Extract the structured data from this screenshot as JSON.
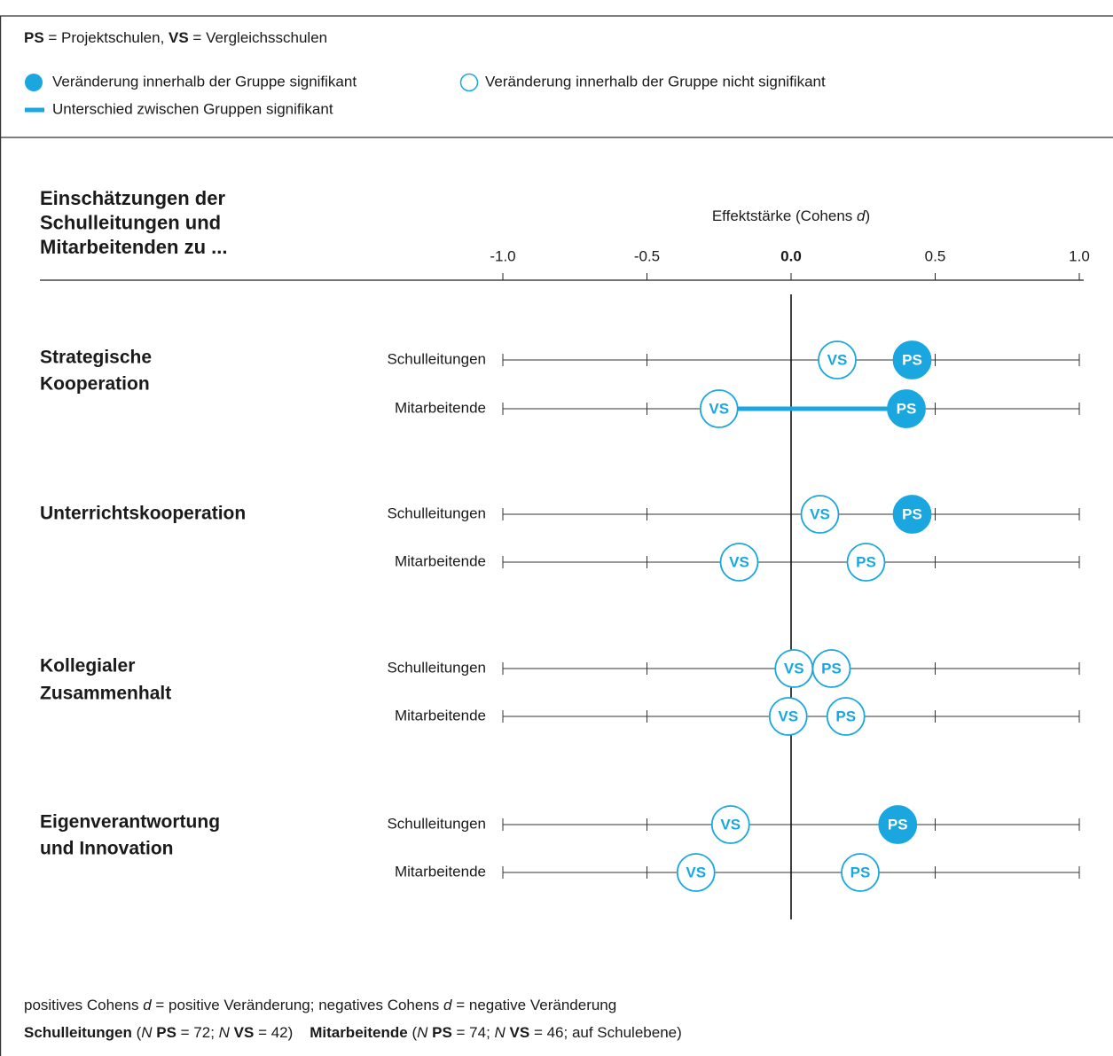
{
  "chart_data": {
    "type": "dot",
    "legend": {
      "abbreviations": [
        {
          "text": "PS",
          "bold": true
        },
        {
          "text": " = Projektschulen, "
        },
        {
          "text": "VS",
          "bold": true
        },
        {
          "text": " = Vergleichsschulen"
        }
      ],
      "significant": "Veränderung innerhalb der Gruppe signifikant",
      "not_significant": "Veränderung innerhalb der Gruppe nicht signifikant",
      "difference": "Unterschied zwischen Gruppen signifikant"
    },
    "title": [
      "Einschätzungen der",
      "Schulleitungen und",
      "Mitarbeitenden zu ..."
    ],
    "x_label": [
      {
        "text": "Effektstärke (Cohens "
      },
      {
        "text": "d",
        "italic": true
      },
      {
        "text": ")"
      }
    ],
    "xlim": [
      -1.0,
      1.0
    ],
    "xticks": [
      {
        "value": -1.0,
        "label": "-1.0"
      },
      {
        "value": -0.5,
        "label": "-0.5"
      },
      {
        "value": 0.0,
        "label": "0.0"
      },
      {
        "value": 0.5,
        "label": "0.5"
      },
      {
        "value": 1.0,
        "label": "1.0"
      }
    ],
    "groups": [
      {
        "name": [
          "Strategische",
          "Kooperation"
        ],
        "categories": [
          "Schulleitungen",
          "Mitarbeitende"
        ]
      },
      {
        "name": [
          "Unterrichtskooperation"
        ],
        "categories": [
          "Schulleitungen",
          "Mitarbeitende"
        ]
      },
      {
        "name": [
          "Kollegialer",
          "Zusammenhalt"
        ],
        "categories": [
          "Schulleitungen",
          "Mitarbeitende"
        ]
      },
      {
        "name": [
          "Eigenverantwortung",
          "und Innovation"
        ],
        "categories": [
          "Schulleitungen",
          "Mitarbeitende"
        ]
      }
    ],
    "series": [
      {
        "name": "VS",
        "color": "#1aa7e0",
        "values": [
          0.16,
          -0.25,
          0.1,
          -0.18,
          0.01,
          -0.01,
          -0.21,
          -0.33
        ],
        "significant": [
          false,
          false,
          false,
          false,
          false,
          false,
          false,
          false
        ]
      },
      {
        "name": "PS",
        "color": "#1aa7e0",
        "values": [
          0.42,
          0.4,
          0.42,
          0.26,
          0.14,
          0.19,
          0.37,
          0.24
        ],
        "significant": [
          true,
          true,
          true,
          false,
          false,
          false,
          true,
          false
        ]
      }
    ],
    "group_difference_significant": [
      false,
      true,
      false,
      false,
      false,
      false,
      false,
      false
    ],
    "footer": [
      [
        {
          "text": "positives Cohens "
        },
        {
          "text": "d",
          "italic": true
        },
        {
          "text": " = positive Veränderung; negatives Cohens "
        },
        {
          "text": "d",
          "italic": true
        },
        {
          "text": " = negative Veränderung"
        }
      ],
      [
        {
          "text": "Schulleitungen",
          "bold": true
        },
        {
          "text": " ("
        },
        {
          "text": "N",
          "italic": true
        },
        {
          "text": " PS",
          "bold": true
        },
        {
          "text": " = 72; "
        },
        {
          "text": "N",
          "italic": true
        },
        {
          "text": " VS",
          "bold": true
        },
        {
          "text": " = 42)    "
        },
        {
          "text": "Mitarbeitende",
          "bold": true
        },
        {
          "text": " ("
        },
        {
          "text": "N",
          "italic": true
        },
        {
          "text": " PS",
          "bold": true
        },
        {
          "text": " = 74; "
        },
        {
          "text": "N",
          "italic": true
        },
        {
          "text": " VS",
          "bold": true
        },
        {
          "text": " = 46; auf Schulebene)"
        }
      ]
    ]
  }
}
